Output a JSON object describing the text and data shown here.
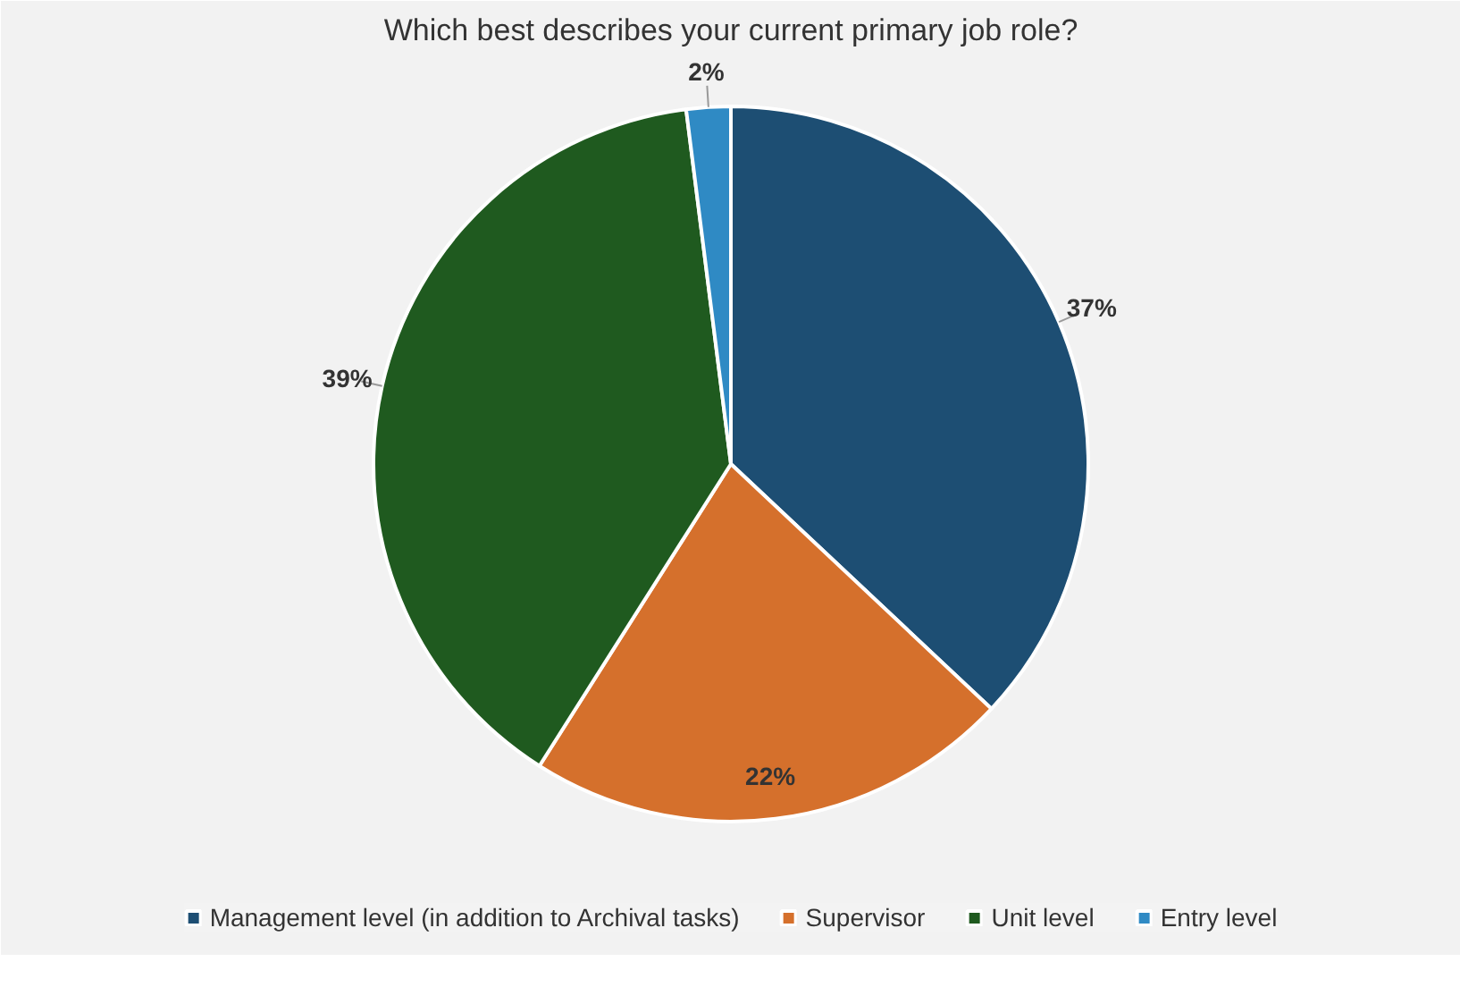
{
  "chart_data": {
    "type": "pie",
    "title": "Which best describes your current primary job role?",
    "categories": [
      "Management level (in addition to Archival tasks)",
      "Supervisor",
      "Unit level",
      "Entry level"
    ],
    "values": [
      37,
      22,
      39,
      2
    ],
    "colors": [
      "#1d4e73",
      "#d5702c",
      "#1f5a1f",
      "#2f8ac4"
    ],
    "value_labels": [
      "37%",
      "22%",
      "39%",
      "2%"
    ],
    "legend": "bottom"
  }
}
